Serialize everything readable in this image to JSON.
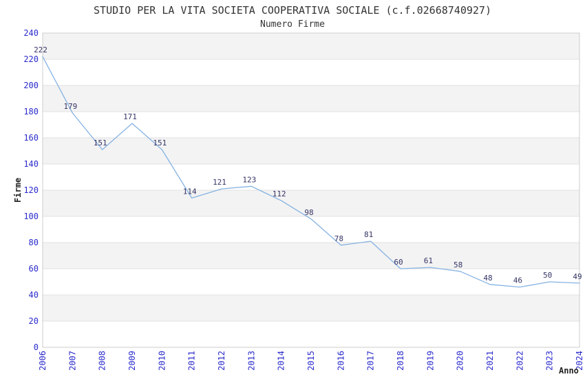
{
  "chart_data": {
    "type": "line",
    "title": "STUDIO PER LA VITA SOCIETA COOPERATIVA SOCIALE (c.f.02668740927)",
    "subtitle": "Numero Firme",
    "xlabel": "Anno",
    "ylabel": "Firme",
    "x": [
      2006,
      2007,
      2008,
      2009,
      2010,
      2011,
      2012,
      2013,
      2014,
      2015,
      2016,
      2017,
      2018,
      2019,
      2020,
      2021,
      2022,
      2023,
      2024
    ],
    "values": [
      222,
      179,
      151,
      171,
      151,
      114,
      121,
      123,
      112,
      98,
      78,
      81,
      60,
      61,
      58,
      48,
      46,
      50,
      49
    ],
    "ylim": [
      0,
      240
    ],
    "ytick_step": 20,
    "grid": "horizontal-bands-alternating",
    "legend": "none",
    "point_labels_shown": true
  },
  "colors": {
    "line": "#85b2e3",
    "point_label": "#333366",
    "tick_label": "#2a2acc",
    "axis_title": "#222222",
    "title_text": "#333333",
    "band_fill": "#f3f3f3",
    "gridline": "#e2e2e2",
    "plot_border": "#cccccc",
    "background": "#ffffff"
  }
}
